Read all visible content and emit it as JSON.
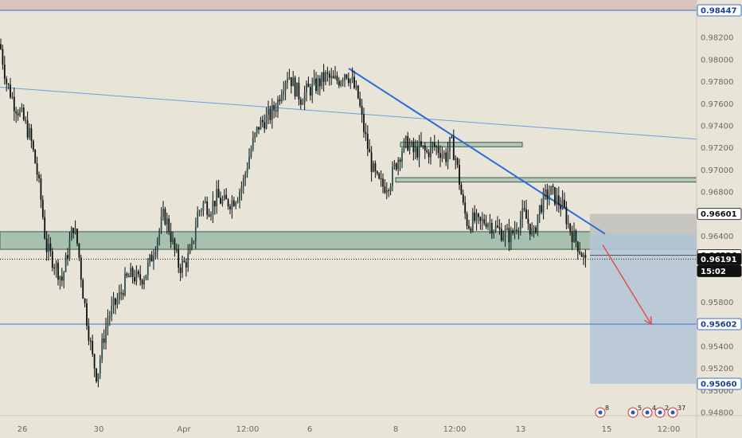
{
  "colors": {
    "background": "#e9e4d8",
    "candle_body": "#0d0d0d",
    "trendline": "#2a6fd8",
    "long_trendline": "#6a9fe0",
    "horizontal_line": "#3d6fd6",
    "zone_fill": "#8fb6a2",
    "zone_border": "#3e5a4a",
    "top_band": "#d8c3c0",
    "target_box": "#b4c6d8",
    "current_price_tag": "#111111",
    "arrow": "#e05050"
  },
  "chart_data": {
    "type": "candlestick",
    "title": "",
    "xlabel": "",
    "ylabel": "",
    "ylim": [
      0.9468,
      0.9856
    ],
    "grid": false,
    "y_ticks": [
      "0.98200",
      "0.98000",
      "0.97800",
      "0.97600",
      "0.97400",
      "0.97200",
      "0.97000",
      "0.96800",
      "0.96400",
      "0.95800",
      "0.95400",
      "0.95200",
      "0.95000",
      "0.94800"
    ],
    "x_ticks": [
      "26",
      "30",
      "Apr",
      "12:00",
      "6",
      "8",
      "12:00",
      "13",
      "15",
      "12:00"
    ],
    "close_path": [
      [
        0,
        0.9814
      ],
      [
        8,
        0.978
      ],
      [
        18,
        0.976
      ],
      [
        28,
        0.9748
      ],
      [
        38,
        0.973
      ],
      [
        46,
        0.97
      ],
      [
        52,
        0.967
      ],
      [
        58,
        0.963
      ],
      [
        65,
        0.962
      ],
      [
        72,
        0.961
      ],
      [
        78,
        0.96
      ],
      [
        85,
        0.9625
      ],
      [
        92,
        0.965
      ],
      [
        98,
        0.963
      ],
      [
        104,
        0.959
      ],
      [
        110,
        0.956
      ],
      [
        116,
        0.953
      ],
      [
        122,
        0.9512
      ],
      [
        128,
        0.954
      ],
      [
        135,
        0.9565
      ],
      [
        142,
        0.9575
      ],
      [
        150,
        0.9585
      ],
      [
        158,
        0.96
      ],
      [
        166,
        0.9605
      ],
      [
        174,
        0.96
      ],
      [
        182,
        0.9605
      ],
      [
        190,
        0.962
      ],
      [
        198,
        0.964
      ],
      [
        206,
        0.966
      ],
      [
        212,
        0.9648
      ],
      [
        218,
        0.963
      ],
      [
        225,
        0.9612
      ],
      [
        232,
        0.9615
      ],
      [
        240,
        0.9625
      ],
      [
        248,
        0.966
      ],
      [
        256,
        0.967
      ],
      [
        264,
        0.9665
      ],
      [
        272,
        0.9675
      ],
      [
        282,
        0.967
      ],
      [
        292,
        0.9672
      ],
      [
        300,
        0.968
      ],
      [
        306,
        0.969
      ],
      [
        312,
        0.971
      ],
      [
        318,
        0.9725
      ],
      [
        325,
        0.974
      ],
      [
        332,
        0.9745
      ],
      [
        340,
        0.975
      ],
      [
        348,
        0.976
      ],
      [
        355,
        0.9778
      ],
      [
        362,
        0.9788
      ],
      [
        370,
        0.9775
      ],
      [
        378,
        0.9765
      ],
      [
        386,
        0.9772
      ],
      [
        394,
        0.9775
      ],
      [
        402,
        0.978
      ],
      [
        410,
        0.9785
      ],
      [
        418,
        0.978
      ],
      [
        426,
        0.9782
      ],
      [
        434,
        0.979
      ],
      [
        442,
        0.978
      ],
      [
        450,
        0.9765
      ],
      [
        456,
        0.974
      ],
      [
        462,
        0.972
      ],
      [
        468,
        0.97
      ],
      [
        475,
        0.9688
      ],
      [
        482,
        0.9685
      ],
      [
        490,
        0.969
      ],
      [
        497,
        0.9705
      ],
      [
        504,
        0.9718
      ],
      [
        512,
        0.9725
      ],
      [
        520,
        0.9715
      ],
      [
        528,
        0.972
      ],
      [
        536,
        0.9715
      ],
      [
        544,
        0.9722
      ],
      [
        552,
        0.9718
      ],
      [
        560,
        0.9712
      ],
      [
        566,
        0.9725
      ],
      [
        572,
        0.9712
      ],
      [
        577,
        0.969
      ],
      [
        582,
        0.9665
      ],
      [
        588,
        0.965
      ],
      [
        595,
        0.9655
      ],
      [
        602,
        0.965
      ],
      [
        610,
        0.9655
      ],
      [
        618,
        0.965
      ],
      [
        626,
        0.9645
      ],
      [
        634,
        0.9642
      ],
      [
        642,
        0.964
      ],
      [
        650,
        0.9652
      ],
      [
        658,
        0.966
      ],
      [
        666,
        0.9648
      ],
      [
        670,
        0.9638
      ],
      [
        676,
        0.9662
      ],
      [
        684,
        0.9675
      ],
      [
        692,
        0.968
      ],
      [
        700,
        0.9672
      ],
      [
        708,
        0.9665
      ],
      [
        714,
        0.965
      ],
      [
        720,
        0.964
      ],
      [
        726,
        0.9632
      ],
      [
        732,
        0.9622
      ],
      [
        737,
        0.9612
      ]
    ],
    "annotations": {
      "top_band": [
        0.98447,
        0.986
      ],
      "upper_long_line": [
        [
          0,
          0.9775
        ],
        [
          875,
          0.9728
        ]
      ],
      "trendline": [
        [
          438,
          0.9792
        ],
        [
          760,
          0.9642
        ]
      ],
      "supply_zone_1": {
        "x": [
          503,
          656
        ],
        "y": [
          0.9721,
          0.9725
        ]
      },
      "supply_zone_2": {
        "x": [
          497,
          875
        ],
        "y": [
          0.9689,
          0.9693
        ]
      },
      "demand_zone": {
        "x": [
          0,
          875
        ],
        "y": [
          0.9628,
          0.9644
        ]
      },
      "target_box": {
        "x": [
          741,
          875
        ],
        "y": [
          0.9506,
          0.96601
        ]
      },
      "target_box_top_shade": {
        "x": [
          741,
          875
        ],
        "y": [
          0.9642,
          0.96601
        ]
      },
      "entry_line": 0.96226,
      "current_price_line": 0.96191,
      "target_line": 0.95602,
      "arrow": [
        [
          757,
          0.9632
        ],
        [
          818,
          0.956
        ]
      ]
    },
    "price_tags": [
      {
        "value": "0.98447",
        "style": "line"
      },
      {
        "value": "0.96601",
        "style": "dark-outline"
      },
      {
        "value": "0.96226",
        "style": "dark-outline"
      },
      {
        "value": "0.96191",
        "style": "current"
      },
      {
        "value": "15:02",
        "style": "current-timer"
      },
      {
        "value": "0.95602",
        "style": "line"
      },
      {
        "value": "0.95060",
        "style": "line"
      }
    ],
    "event_icons": [
      {
        "label": "8"
      },
      {
        "label": "5"
      },
      {
        "label": "4"
      },
      {
        "label": "2"
      },
      {
        "label": "37"
      }
    ]
  }
}
